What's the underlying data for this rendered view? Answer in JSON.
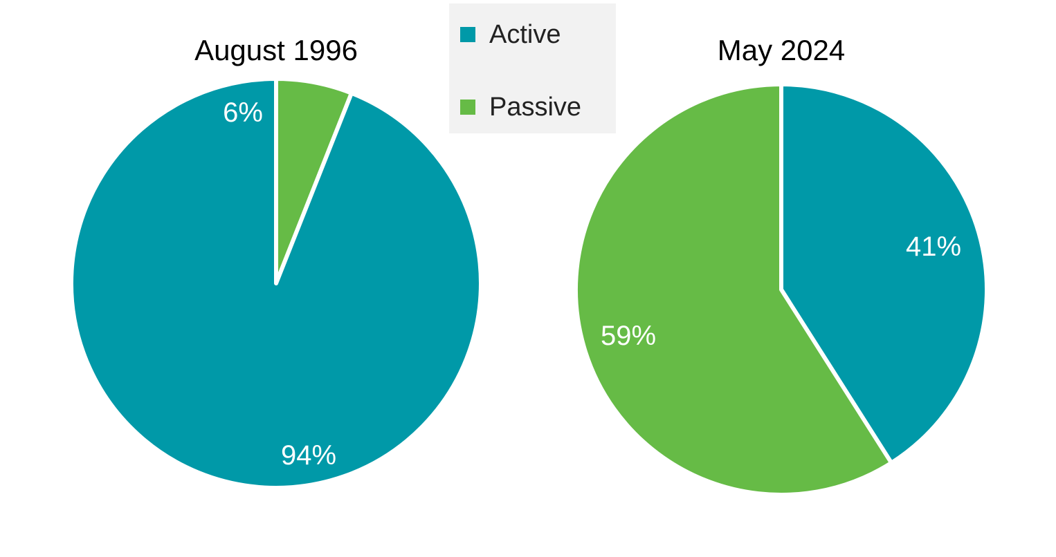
{
  "legend": {
    "items": [
      {
        "label": "Active",
        "color": "#0099a8"
      },
      {
        "label": "Passive",
        "color": "#66bb46"
      }
    ]
  },
  "chart_data": [
    {
      "type": "pie",
      "title": "August 1996",
      "categories": [
        "Active",
        "Passive"
      ],
      "values": [
        94,
        6
      ],
      "labels": [
        "94%",
        "6%"
      ],
      "colors": [
        "#0099a8",
        "#66bb46"
      ],
      "legend": "top-center"
    },
    {
      "type": "pie",
      "title": "May 2024",
      "categories": [
        "Active",
        "Passive"
      ],
      "values": [
        41,
        59
      ],
      "labels": [
        "41%",
        "59%"
      ],
      "colors": [
        "#0099a8",
        "#66bb46"
      ],
      "legend": "top-center"
    }
  ]
}
